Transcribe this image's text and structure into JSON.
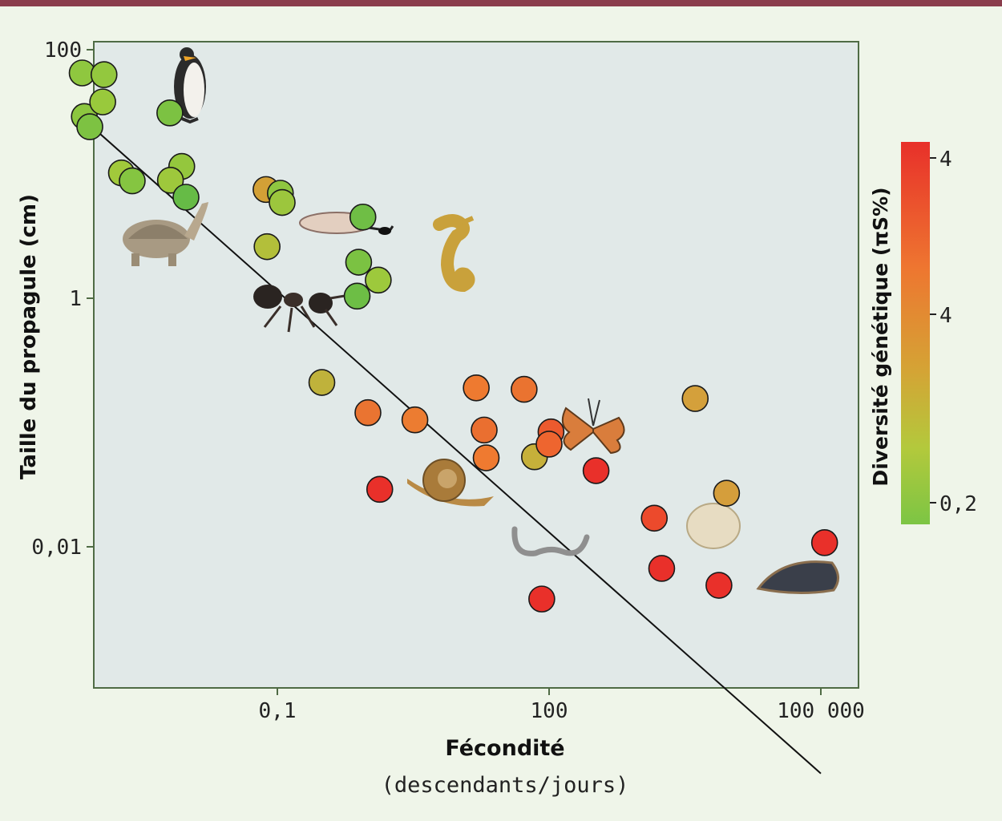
{
  "chart_data": {
    "type": "scatter",
    "title": "",
    "xlabel": "Fécondité",
    "xlabel_sub": "(descendants/jours)",
    "ylabel": "Taille du propagule (cm)",
    "x_scale": "log",
    "y_scale": "log",
    "xlim": [
      0.0004,
      300000
    ],
    "ylim": [
      7e-05,
      150
    ],
    "x_ticks": [
      {
        "value": 0.1,
        "label": "0,1"
      },
      {
        "value": 100,
        "label": "100"
      },
      {
        "value": 100000,
        "label": "100 000"
      }
    ],
    "y_ticks": [
      {
        "value": 100,
        "label": "100"
      },
      {
        "value": 1,
        "label": "1"
      },
      {
        "value": 0.01,
        "label": "0,01"
      }
    ],
    "grid": false,
    "background": "#e1e9e8",
    "colorbar": {
      "title": "Diversité génétique (πS%)",
      "ticks": [
        "4",
        "4",
        "0,2"
      ],
      "colors": [
        "#e8302a",
        "#ee7630",
        "#d4a435",
        "#b3c93c",
        "#7cc544"
      ]
    },
    "regression_line": {
      "x": [
        0.0009,
        100000
      ],
      "y": [
        24,
        0.00015
      ]
    },
    "points": [
      {
        "x": 0.0007,
        "y": 65,
        "c": "#8fc73f"
      },
      {
        "x": 0.00122,
        "y": 63,
        "c": "#93c83e"
      },
      {
        "x": 0.00074,
        "y": 29,
        "c": "#8cc63f"
      },
      {
        "x": 0.00118,
        "y": 38,
        "c": "#99c93c"
      },
      {
        "x": 0.00085,
        "y": 24,
        "c": "#7dc242"
      },
      {
        "x": 0.0065,
        "y": 31,
        "c": "#7cc242"
      },
      {
        "x": 0.0019,
        "y": 10.2,
        "c": "#a1c93b"
      },
      {
        "x": 0.0025,
        "y": 8.8,
        "c": "#85c541"
      },
      {
        "x": 0.0088,
        "y": 11.5,
        "c": "#94c73d"
      },
      {
        "x": 0.0066,
        "y": 8.9,
        "c": "#9ec83c"
      },
      {
        "x": 0.0098,
        "y": 6.5,
        "c": "#66bb46"
      },
      {
        "x": 0.075,
        "y": 7.5,
        "c": "#d3a036"
      },
      {
        "x": 0.108,
        "y": 7.0,
        "c": "#8fc640"
      },
      {
        "x": 0.113,
        "y": 5.9,
        "c": "#9cc63d"
      },
      {
        "x": 0.077,
        "y": 2.6,
        "c": "#b3bf3a"
      },
      {
        "x": 0.88,
        "y": 4.5,
        "c": "#6fbe45"
      },
      {
        "x": 0.79,
        "y": 1.95,
        "c": "#7bc242"
      },
      {
        "x": 0.76,
        "y": 1.04,
        "c": "#6dbe45"
      },
      {
        "x": 1.3,
        "y": 1.4,
        "c": "#9dc93c"
      },
      {
        "x": 0.31,
        "y": 0.21,
        "c": "#bfb23b"
      },
      {
        "x": 1.0,
        "y": 0.12,
        "c": "#ea7431"
      },
      {
        "x": 3.3,
        "y": 0.105,
        "c": "#ec7c31"
      },
      {
        "x": 15.7,
        "y": 0.19,
        "c": "#ee7a30"
      },
      {
        "x": 53,
        "y": 0.185,
        "c": "#ea7330"
      },
      {
        "x": 19.2,
        "y": 0.087,
        "c": "#ea6f30"
      },
      {
        "x": 20.2,
        "y": 0.052,
        "c": "#ef7a30"
      },
      {
        "x": 69,
        "y": 0.053,
        "c": "#c6b03a"
      },
      {
        "x": 1.35,
        "y": 0.029,
        "c": "#e9302a"
      },
      {
        "x": 105,
        "y": 0.084,
        "c": "#ec5a2e"
      },
      {
        "x": 100,
        "y": 0.067,
        "c": "#ee652f"
      },
      {
        "x": 330,
        "y": 0.041,
        "c": "#e9302a"
      },
      {
        "x": 4100,
        "y": 0.156,
        "c": "#d4a03b"
      },
      {
        "x": 1450,
        "y": 0.017,
        "c": "#ec4a2c"
      },
      {
        "x": 9100,
        "y": 0.027,
        "c": "#d59e3b"
      },
      {
        "x": 1750,
        "y": 0.0067,
        "c": "#e9302a"
      },
      {
        "x": 7500,
        "y": 0.0049,
        "c": "#e9302a"
      },
      {
        "x": 83,
        "y": 0.0038,
        "c": "#e9302a"
      },
      {
        "x": 110000,
        "y": 0.0108,
        "c": "#e9302a"
      }
    ],
    "illustrations": [
      "penguin-icon",
      "tortoise-icon",
      "larva-icon",
      "seahorse-icon",
      "ant-icon",
      "snail-icon",
      "butterfly-icon",
      "nematode-icon",
      "sponge-icon",
      "mussel-icon"
    ]
  }
}
